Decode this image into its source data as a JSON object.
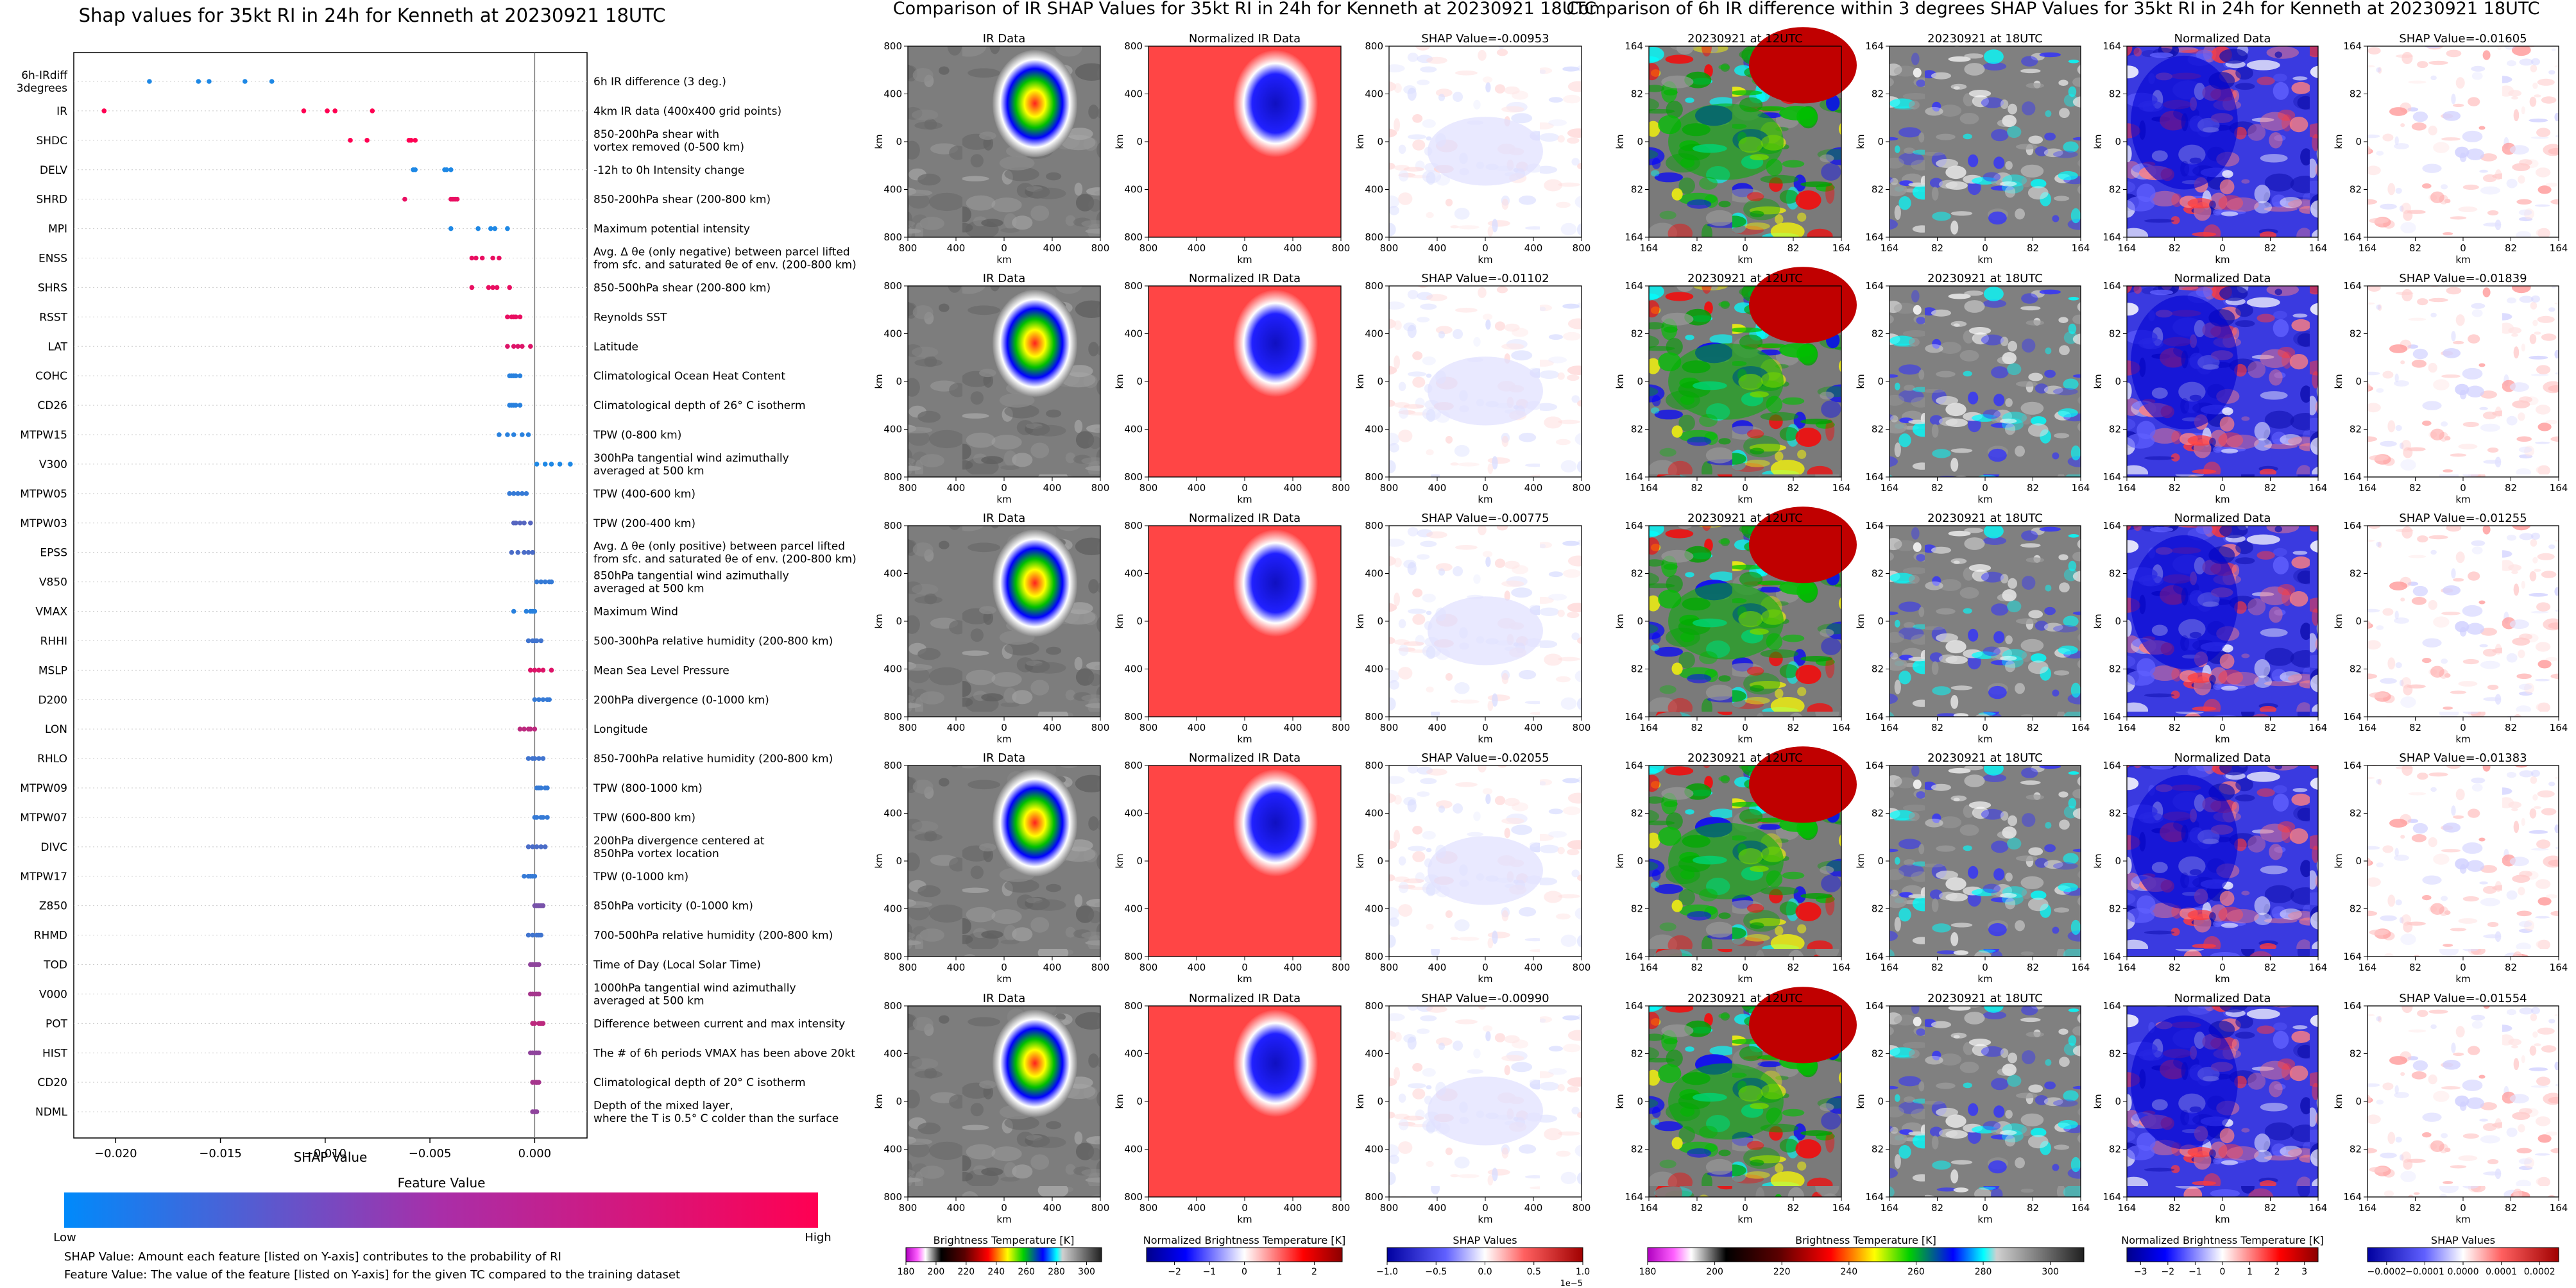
{
  "beeswarm": {
    "title": "Shap values for 35kt RI in 24h for Kenneth at 20230921 18UTC",
    "xlabel": "SHAP Value",
    "xticks": [
      "−0.020",
      "−0.015",
      "−0.010",
      "−0.005",
      "0.000"
    ],
    "colorbar_title": "Feature Value",
    "colorbar_low": "Low",
    "colorbar_high": "High",
    "footnote_1": "SHAP Value: Amount each feature [listed on Y-axis] contributes to the probability of RI",
    "footnote_2": "Feature Value: The value of the feature [listed on Y-axis] for the given TC compared to the training dataset"
  },
  "features": [
    {
      "code": "6h-IRdiff\n3degrees",
      "desc": "6h IR difference (3 deg.)"
    },
    {
      "code": "IR",
      "desc": "4km IR data (400x400 grid points)"
    },
    {
      "code": "SHDC",
      "desc": "850-200hPa shear with\nvortex removed (0-500 km)"
    },
    {
      "code": "DELV",
      "desc": "-12h to 0h Intensity change"
    },
    {
      "code": "SHRD",
      "desc": "850-200hPa shear (200-800 km)"
    },
    {
      "code": "MPI",
      "desc": "Maximum potential intensity"
    },
    {
      "code": "ENSS",
      "desc": "Avg. Δ θe (only negative) between parcel lifted\nfrom sfc. and saturated θe of env. (200-800 km)"
    },
    {
      "code": "SHRS",
      "desc": "850-500hPa shear (200-800 km)"
    },
    {
      "code": "RSST",
      "desc": "Reynolds SST"
    },
    {
      "code": "LAT",
      "desc": "Latitude"
    },
    {
      "code": "COHC",
      "desc": "Climatological Ocean Heat Content"
    },
    {
      "code": "CD26",
      "desc": "Climatological depth of 26° C isotherm"
    },
    {
      "code": "MTPW15",
      "desc": "TPW (0-800 km)"
    },
    {
      "code": "V300",
      "desc": "300hPa tangential wind azimuthally\naveraged at 500 km"
    },
    {
      "code": "MTPW05",
      "desc": "TPW (400-600 km)"
    },
    {
      "code": "MTPW03",
      "desc": "TPW (200-400 km)"
    },
    {
      "code": "EPSS",
      "desc": "Avg. Δ θe (only positive) between parcel lifted\nfrom sfc. and saturated θe of env. (200-800 km)"
    },
    {
      "code": "V850",
      "desc": "850hPa tangential wind azimuthally\naveraged at 500 km"
    },
    {
      "code": "VMAX",
      "desc": "Maximum Wind"
    },
    {
      "code": "RHHI",
      "desc": "500-300hPa relative humidity (200-800 km)"
    },
    {
      "code": "MSLP",
      "desc": "Mean Sea Level Pressure"
    },
    {
      "code": "D200",
      "desc": "200hPa divergence (0-1000 km)"
    },
    {
      "code": "LON",
      "desc": "Longitude"
    },
    {
      "code": "RHLO",
      "desc": "850-700hPa relative humidity (200-800 km)"
    },
    {
      "code": "MTPW09",
      "desc": "TPW (800-1000 km)"
    },
    {
      "code": "MTPW07",
      "desc": "TPW (600-800 km)"
    },
    {
      "code": "DIVC",
      "desc": "200hPa divergence centered at\n850hPa vortex location"
    },
    {
      "code": "MTPW17",
      "desc": "TPW (0-1000 km)"
    },
    {
      "code": "Z850",
      "desc": "850hPa vorticity (0-1000 km)"
    },
    {
      "code": "RHMD",
      "desc": "700-500hPa relative humidity (200-800 km)"
    },
    {
      "code": "TOD",
      "desc": "Time of Day (Local Solar Time)"
    },
    {
      "code": "V000",
      "desc": "1000hPa tangential wind azimuthally\naveraged at 500 km"
    },
    {
      "code": "POT",
      "desc": "Difference between current and max intensity"
    },
    {
      "code": "HIST",
      "desc": "The # of 6h periods VMAX has been above 20kt"
    },
    {
      "code": "CD20",
      "desc": "Climatological depth of 20° C isotherm"
    },
    {
      "code": "NDML",
      "desc": "Depth of the mixed layer,\nwhere the T is 0.5° C colder than the surface"
    }
  ],
  "chart_data": [
    {
      "type": "scatter",
      "title": "Shap values for 35kt RI in 24h for Kenneth at 20230921 18UTC",
      "xlabel": "SHAP Value",
      "xlim": [
        -0.022,
        0.0025
      ],
      "color_scale": {
        "low": "#1e88e5",
        "high": "#ff0052"
      },
      "series": [
        {
          "feature": "6h-IRdiff 3degrees",
          "shap": [
            -0.01839,
            -0.01605,
            -0.01554,
            -0.01383,
            -0.01255
          ],
          "fv": [
            0,
            0,
            0,
            0,
            0
          ]
        },
        {
          "feature": "IR",
          "shap": [
            -0.02055,
            -0.01102,
            -0.0099,
            -0.00953,
            -0.00775
          ],
          "fv": [
            1,
            1,
            1,
            1,
            1
          ]
        },
        {
          "feature": "SHDC",
          "shap": [
            -0.0088,
            -0.008,
            -0.006,
            -0.0059,
            -0.0057
          ],
          "fv": [
            1,
            1,
            1,
            1,
            1
          ]
        },
        {
          "feature": "DELV",
          "shap": [
            -0.0058,
            -0.0057,
            -0.0043,
            -0.0042,
            -0.004
          ],
          "fv": [
            0,
            0,
            0,
            0,
            0
          ]
        },
        {
          "feature": "SHRD",
          "shap": [
            -0.0062,
            -0.004,
            -0.0039,
            -0.0038,
            -0.0037
          ],
          "fv": [
            0.9,
            0.9,
            0.9,
            0.9,
            0.9
          ]
        },
        {
          "feature": "MPI",
          "shap": [
            -0.004,
            -0.0027,
            -0.0021,
            -0.0019,
            -0.0013
          ],
          "fv": [
            0,
            0,
            0,
            0,
            0
          ]
        },
        {
          "feature": "ENSS",
          "shap": [
            -0.003,
            -0.0028,
            -0.0025,
            -0.002,
            -0.0017
          ],
          "fv": [
            0.9,
            0.9,
            0.9,
            0.9,
            0.9
          ]
        },
        {
          "feature": "SHRS",
          "shap": [
            -0.003,
            -0.0022,
            -0.002,
            -0.0018,
            -0.0012
          ],
          "fv": [
            0.9,
            0.9,
            0.9,
            0.9,
            0.9
          ]
        },
        {
          "feature": "RSST",
          "shap": [
            -0.0013,
            -0.0011,
            -0.001,
            -0.0009,
            -0.0007
          ],
          "fv": [
            0.9,
            0.9,
            0.9,
            0.9,
            0.9
          ]
        },
        {
          "feature": "LAT",
          "shap": [
            -0.0013,
            -0.001,
            -0.0008,
            -0.0006,
            -0.0002
          ],
          "fv": [
            0.85,
            0.85,
            0.85,
            0.85,
            0.85
          ]
        },
        {
          "feature": "COHC",
          "shap": [
            -0.0012,
            -0.0011,
            -0.001,
            -0.0009,
            -0.0007
          ],
          "fv": [
            0.05,
            0.05,
            0.05,
            0.05,
            0.05
          ]
        },
        {
          "feature": "CD26",
          "shap": [
            -0.0012,
            -0.0011,
            -0.001,
            -0.0009,
            -0.0007
          ],
          "fv": [
            0.05,
            0.05,
            0.05,
            0.05,
            0.05
          ]
        },
        {
          "feature": "MTPW15",
          "shap": [
            -0.0017,
            -0.0013,
            -0.001,
            -0.0006,
            -0.0003
          ],
          "fv": [
            0.05,
            0.05,
            0.05,
            0.05,
            0.05
          ]
        },
        {
          "feature": "V300",
          "shap": [
            0.0001,
            0.0005,
            0.0008,
            0.0012,
            0.0017
          ],
          "fv": [
            0,
            0,
            0,
            0,
            0
          ]
        },
        {
          "feature": "MTPW05",
          "shap": [
            -0.0012,
            -0.001,
            -0.0008,
            -0.0006,
            -0.0004
          ],
          "fv": [
            0.1,
            0.1,
            0.1,
            0.1,
            0.1
          ]
        },
        {
          "feature": "MTPW03",
          "shap": [
            -0.001,
            -0.0009,
            -0.0007,
            -0.0005,
            -0.0002
          ],
          "fv": [
            0.25,
            0.25,
            0.25,
            0.25,
            0.25
          ]
        },
        {
          "feature": "EPSS",
          "shap": [
            -0.0011,
            -0.0008,
            -0.0005,
            -0.0003,
            -0.0001
          ],
          "fv": [
            0.2,
            0.2,
            0.2,
            0.2,
            0.2
          ]
        },
        {
          "feature": "V850",
          "shap": [
            0.0001,
            0.0003,
            0.0005,
            0.0007,
            0.0008
          ],
          "fv": [
            0.1,
            0.1,
            0.1,
            0.1,
            0.1
          ]
        },
        {
          "feature": "VMAX",
          "shap": [
            -0.001,
            -0.0004,
            -0.0002,
            -0.0001,
            0.0
          ],
          "fv": [
            0.05,
            0.05,
            0.05,
            0.05,
            0.05
          ]
        },
        {
          "feature": "RHHI",
          "shap": [
            -0.0003,
            -0.0001,
            0.0,
            0.0001,
            0.0003
          ],
          "fv": [
            0.15,
            0.15,
            0.15,
            0.15,
            0.15
          ]
        },
        {
          "feature": "MSLP",
          "shap": [
            -0.0002,
            0.0,
            0.0002,
            0.0004,
            0.0008
          ],
          "fv": [
            0.85,
            0.85,
            0.85,
            0.85,
            0.85
          ]
        },
        {
          "feature": "D200",
          "shap": [
            0.0,
            0.0002,
            0.0004,
            0.0006,
            0.0007
          ],
          "fv": [
            0.1,
            0.1,
            0.1,
            0.1,
            0.1
          ]
        },
        {
          "feature": "LON",
          "shap": [
            -0.0007,
            -0.0005,
            -0.0003,
            -0.0002,
            0.0
          ],
          "fv": [
            0.7,
            0.7,
            0.7,
            0.7,
            0.7
          ]
        },
        {
          "feature": "RHLO",
          "shap": [
            -0.0003,
            -0.0001,
            0.0,
            0.0002,
            0.0004
          ],
          "fv": [
            0.15,
            0.15,
            0.15,
            0.15,
            0.15
          ]
        },
        {
          "feature": "MTPW09",
          "shap": [
            0.0001,
            0.0002,
            0.0003,
            0.0005,
            0.0006
          ],
          "fv": [
            0.1,
            0.1,
            0.1,
            0.1,
            0.1
          ]
        },
        {
          "feature": "MTPW07",
          "shap": [
            0.0,
            0.0001,
            0.0003,
            0.0004,
            0.0006
          ],
          "fv": [
            0.1,
            0.1,
            0.1,
            0.1,
            0.1
          ]
        },
        {
          "feature": "DIVC",
          "shap": [
            -0.0003,
            -0.0001,
            0.0001,
            0.0003,
            0.0005
          ],
          "fv": [
            0.2,
            0.2,
            0.2,
            0.2,
            0.2
          ]
        },
        {
          "feature": "MTPW17",
          "shap": [
            -0.0005,
            -0.0003,
            -0.0002,
            -0.0001,
            0.0
          ],
          "fv": [
            0.1,
            0.1,
            0.1,
            0.1,
            0.1
          ]
        },
        {
          "feature": "Z850",
          "shap": [
            0.0,
            0.0001,
            0.0002,
            0.0003,
            0.0004
          ],
          "fv": [
            0.4,
            0.4,
            0.4,
            0.4,
            0.4
          ]
        },
        {
          "feature": "RHMD",
          "shap": [
            -0.0003,
            -0.0001,
            0.0001,
            0.0002,
            0.0003
          ],
          "fv": [
            0.15,
            0.15,
            0.15,
            0.15,
            0.15
          ]
        },
        {
          "feature": "TOD",
          "shap": [
            -0.0002,
            -0.0001,
            0.0,
            0.0001,
            0.0002
          ],
          "fv": [
            0.5,
            0.5,
            0.5,
            0.5,
            0.5
          ]
        },
        {
          "feature": "V000",
          "shap": [
            -0.0002,
            -0.0001,
            0.0,
            0.0001,
            0.0002
          ],
          "fv": [
            0.6,
            0.6,
            0.6,
            0.6,
            0.6
          ]
        },
        {
          "feature": "POT",
          "shap": [
            -0.0001,
            0.0,
            0.0002,
            0.0003,
            0.0004
          ],
          "fv": [
            0.7,
            0.7,
            0.7,
            0.7,
            0.7
          ]
        },
        {
          "feature": "HIST",
          "shap": [
            -0.0002,
            -0.0001,
            0.0,
            0.0001,
            0.0002
          ],
          "fv": [
            0.5,
            0.5,
            0.5,
            0.5,
            0.5
          ]
        },
        {
          "feature": "CD20",
          "shap": [
            -0.0001,
            0.0,
            0.0001,
            0.0001,
            0.0002
          ],
          "fv": [
            0.6,
            0.6,
            0.6,
            0.6,
            0.6
          ]
        },
        {
          "feature": "NDML",
          "shap": [
            -0.0001,
            0.0,
            0.0,
            0.0,
            0.0001
          ],
          "fv": [
            0.5,
            0.5,
            0.5,
            0.5,
            0.5
          ]
        }
      ]
    },
    {
      "type": "heatmap",
      "title": "Comparison of IR SHAP Values for 35kt RI in 24h for Kenneth at 20230921 18UTC",
      "column_titles": [
        "IR Data",
        "Normalized IR Data"
      ],
      "shap_titles": [
        "SHAP Value=-0.00953",
        "SHAP Value=-0.01102",
        "SHAP Value=-0.00775",
        "SHAP Value=-0.02055",
        "SHAP Value=-0.00990"
      ],
      "shap_values": [
        -0.00953,
        -0.01102,
        -0.00775,
        -0.02055,
        -0.0099
      ],
      "xlabel": "km",
      "ylabel": "km",
      "xticks": [
        "800",
        "400",
        "0",
        "400",
        "800"
      ],
      "yticks": [
        "800",
        "400",
        "0",
        "400",
        "800"
      ],
      "colorbars": [
        {
          "label": "Brightness Temperature [K]",
          "ticks": [
            "180",
            "200",
            "220",
            "240",
            "260",
            "280",
            "300"
          ],
          "range": [
            180,
            310
          ]
        },
        {
          "label": "Normalized Brightness Temperature [K]",
          "ticks": [
            "−2",
            "−1",
            "0",
            "1",
            "2"
          ],
          "range": [
            -2.8,
            2.8
          ]
        },
        {
          "label": "SHAP Values",
          "ticks": [
            "−1.0",
            "−0.5",
            "0.0",
            "0.5",
            "1.0"
          ],
          "range": [
            -1.0,
            1.0
          ],
          "offset": "1e−5"
        }
      ]
    },
    {
      "type": "heatmap",
      "title": "Comparison of 6h IR difference within 3 degrees SHAP Values for 35kt RI in 24h for Kenneth at 20230921 18UTC",
      "column_titles": [
        "20230921 at 12UTC",
        "20230921 at 18UTC",
        "Normalized Data"
      ],
      "shap_titles": [
        "SHAP Value=-0.01605",
        "SHAP Value=-0.01839",
        "SHAP Value=-0.01255",
        "SHAP Value=-0.01383",
        "SHAP Value=-0.01554"
      ],
      "shap_values": [
        -0.01605,
        -0.01839,
        -0.01255,
        -0.01383,
        -0.01554
      ],
      "xlabel": "km",
      "ylabel": "km",
      "xticks": [
        "164",
        "82",
        "0",
        "82",
        "164"
      ],
      "yticks": [
        "164",
        "82",
        "0",
        "82",
        "164"
      ],
      "colorbars": [
        {
          "label": "Brightness Temperature [K]",
          "ticks": [
            "180",
            "200",
            "220",
            "240",
            "260",
            "280",
            "300"
          ],
          "range": [
            180,
            310
          ]
        },
        {
          "label": "Normalized Brightness Temperature [K]",
          "ticks": [
            "−3",
            "−2",
            "−1",
            "0",
            "1",
            "2",
            "3"
          ],
          "range": [
            -3.5,
            3.5
          ]
        },
        {
          "label": "SHAP Values",
          "ticks": [
            "−0.0002",
            "−0.0001",
            "0.0000",
            "0.0001",
            "0.0002"
          ],
          "range": [
            -0.00025,
            0.00025
          ]
        }
      ]
    }
  ]
}
